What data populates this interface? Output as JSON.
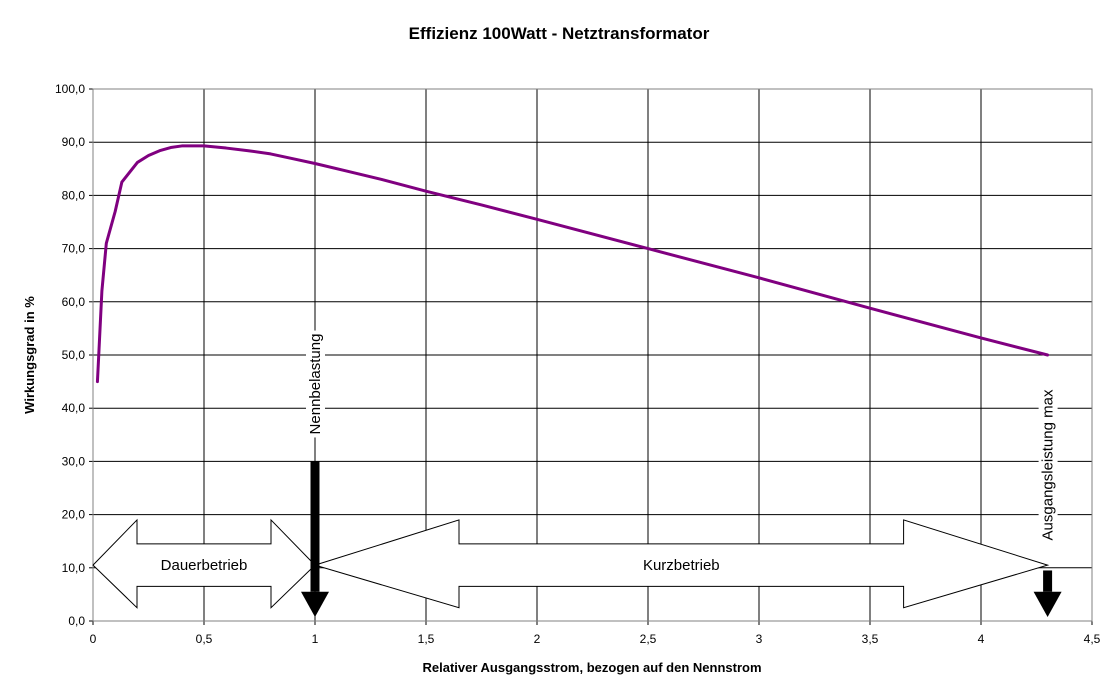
{
  "chart_data": {
    "type": "line",
    "title": "Effizienz 100Watt - Netztransformator",
    "xlabel": "Relativer Ausgangsstrom, bezogen auf den Nennstrom",
    "ylabel": "Wirkungsgrad in %",
    "xlim": [
      0,
      4.5
    ],
    "ylim": [
      0,
      100
    ],
    "grid": true,
    "x_ticks": [
      0,
      0.5,
      1,
      1.5,
      2,
      2.5,
      3,
      3.5,
      4,
      4.5
    ],
    "x_tick_labels": [
      "0",
      "0,5",
      "1",
      "1,5",
      "2",
      "2,5",
      "3",
      "3,5",
      "4",
      "4,5"
    ],
    "y_ticks": [
      0,
      10,
      20,
      30,
      40,
      50,
      60,
      70,
      80,
      90,
      100
    ],
    "y_tick_labels": [
      "0,0",
      "10,0",
      "20,0",
      "30,0",
      "40,0",
      "50,0",
      "60,0",
      "70,0",
      "80,0",
      "90,0",
      "100,0"
    ],
    "series": [
      {
        "color": "#800080",
        "x": [
          0.02,
          0.04,
          0.06,
          0.1,
          0.13,
          0.2,
          0.25,
          0.3,
          0.35,
          0.4,
          0.5,
          0.6,
          0.7,
          0.8,
          0.9,
          1.0,
          1.15,
          1.3,
          1.5,
          1.75,
          2.0,
          2.5,
          3.0,
          3.5,
          4.0,
          4.3
        ],
        "y": [
          45,
          62,
          71,
          77,
          82.5,
          86.2,
          87.5,
          88.4,
          89.0,
          89.3,
          89.3,
          88.9,
          88.4,
          87.8,
          86.9,
          86.0,
          84.5,
          83.0,
          80.8,
          78.2,
          75.5,
          70.0,
          64.5,
          58.8,
          53.2,
          50.0
        ]
      }
    ],
    "annotations": [
      {
        "text": "Dauerbetrieb",
        "kind": "double-arrow",
        "x_range": [
          0,
          1
        ]
      },
      {
        "text": "Kurzbetrieb",
        "kind": "double-arrow",
        "x_range": [
          1,
          4.3
        ]
      },
      {
        "text": "Nennbelastung",
        "kind": "vertical-arrow",
        "x": 1
      },
      {
        "text": "Ausgangsleistung max",
        "kind": "vertical-arrow",
        "x": 4.3
      }
    ]
  }
}
